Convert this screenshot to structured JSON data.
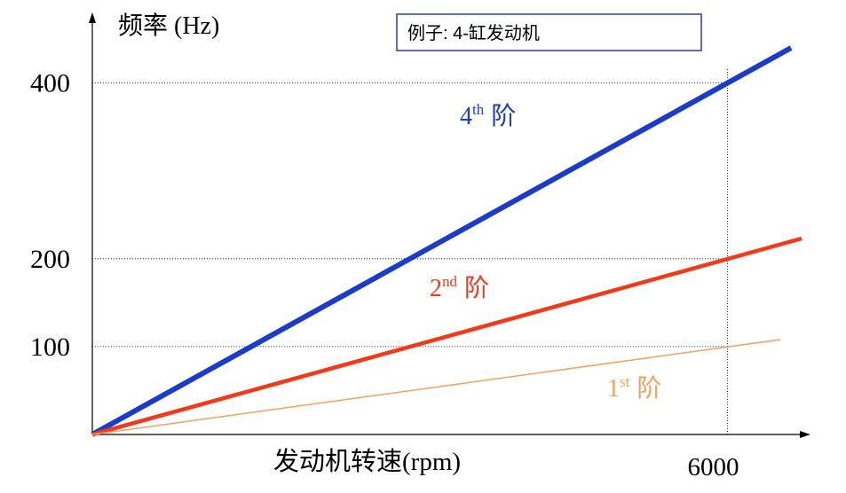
{
  "chart_data": {
    "type": "line",
    "ylabel": "频率 (Hz)",
    "xlabel": "发动机转速(rpm)",
    "legend_box": "例子: 4-缸发动机",
    "xlim": [
      0,
      6700
    ],
    "ylim": [
      0,
      445
    ],
    "x_ticks": [
      {
        "value": 6000,
        "label": "6000"
      }
    ],
    "y_ticks": [
      {
        "value": 100,
        "label": "100"
      },
      {
        "value": 200,
        "label": "200"
      },
      {
        "value": 400,
        "label": "400"
      }
    ],
    "grid": {
      "horizontal": [
        100,
        200,
        400
      ],
      "vertical": [
        6000
      ],
      "style": "dotted"
    },
    "series": [
      {
        "name": "4th 阶",
        "name_base": "4",
        "name_sup": "th",
        "name_suffix": "阶",
        "color": "#1a3cc8",
        "x": [
          0,
          6600
        ],
        "y": [
          0,
          440
        ]
      },
      {
        "name": "2nd 阶",
        "name_base": "2",
        "name_sup": "nd",
        "name_suffix": "阶",
        "color": "#f03a1a",
        "x": [
          0,
          6700
        ],
        "y": [
          0,
          223
        ]
      },
      {
        "name": "1st 阶",
        "name_base": "1",
        "name_sup": "st",
        "name_suffix": "阶",
        "color": "#f0a060",
        "x": [
          0,
          6500
        ],
        "y": [
          0,
          108
        ]
      }
    ]
  }
}
